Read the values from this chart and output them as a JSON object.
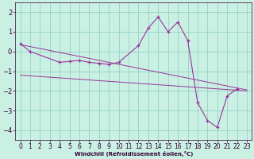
{
  "xlabel": "Windchill (Refroidissement éolien,°C)",
  "bg_color": "#caf0e4",
  "grid_color": "#88ccbb",
  "line_color": "#993399",
  "ylim": [
    -4.5,
    2.5
  ],
  "xlim": [
    -0.5,
    23.5
  ],
  "yticks": [
    -4,
    -3,
    -2,
    -1,
    0,
    1,
    2
  ],
  "xticks": [
    0,
    1,
    2,
    3,
    4,
    5,
    6,
    7,
    8,
    9,
    10,
    11,
    12,
    13,
    14,
    15,
    16,
    17,
    18,
    19,
    20,
    21,
    22,
    23
  ],
  "main_x": [
    0,
    1,
    4,
    5,
    6,
    7,
    8,
    9,
    10,
    12,
    13,
    14,
    15,
    16,
    17,
    18,
    19,
    20,
    21,
    22
  ],
  "main_y": [
    0.4,
    0.0,
    -0.55,
    -0.5,
    -0.45,
    -0.55,
    -0.6,
    -0.65,
    -0.55,
    0.3,
    1.2,
    1.75,
    1.0,
    1.5,
    0.55,
    -2.6,
    -3.5,
    -3.85,
    -2.25,
    -1.9
  ],
  "line1_x": [
    0,
    23
  ],
  "line1_y": [
    0.35,
    -1.95
  ],
  "line2_x": [
    0,
    23
  ],
  "line2_y": [
    -1.2,
    -2.0
  ],
  "xlabel_fontsize": 5,
  "tick_fontsize": 5.5
}
